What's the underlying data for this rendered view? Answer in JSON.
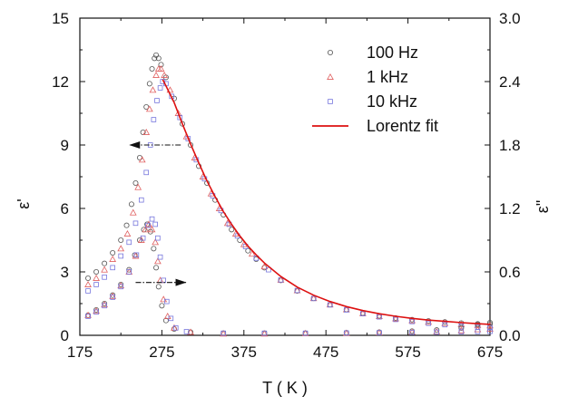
{
  "chart_data": {
    "type": "scatter",
    "xlabel": "T ( K )",
    "ylabel_left": "ε'",
    "ylabel_right": "ε\"",
    "x_range": [
      175,
      675
    ],
    "x_ticks": [
      "175",
      "275",
      "375",
      "475",
      "575",
      "675"
    ],
    "y_left_range": [
      0,
      15
    ],
    "y_left_ticks": [
      "0",
      "3",
      "6",
      "9",
      "12",
      "15"
    ],
    "y_right_range": [
      0,
      3.0
    ],
    "y_right_ticks": [
      "0.0",
      "0.6",
      "1.2",
      "1.8",
      "2.4",
      "3.0"
    ],
    "grid": false,
    "legend_position": "top-right",
    "legend": [
      {
        "label": "100  Hz",
        "marker": "circle",
        "color": "#555555"
      },
      {
        "label": "1    kHz",
        "marker": "triangle",
        "color": "#e06060"
      },
      {
        "label": "10  kHz",
        "marker": "square",
        "color": "#7777dd"
      },
      {
        "label": "Lorentz fit",
        "marker": "line",
        "color": "#dd1111"
      }
    ],
    "annotations": [
      {
        "type": "arrow",
        "direction": "left",
        "axis": "left",
        "from": [
          298,
          9.0
        ],
        "to": [
          235,
          9.0
        ]
      },
      {
        "type": "arrow",
        "direction": "right",
        "axis": "left",
        "from": [
          243,
          2.5
        ],
        "to": [
          305,
          2.5
        ]
      }
    ],
    "series": [
      {
        "name": "100  Hz",
        "axis": "left",
        "marker": "circle",
        "color": "#555555",
        "points": [
          [
            185,
            2.7
          ],
          [
            195,
            3.0
          ],
          [
            205,
            3.4
          ],
          [
            215,
            3.9
          ],
          [
            225,
            4.5
          ],
          [
            232,
            5.2
          ],
          [
            238,
            6.2
          ],
          [
            243,
            7.2
          ],
          [
            248,
            8.4
          ],
          [
            252,
            9.6
          ],
          [
            256,
            10.8
          ],
          [
            260,
            11.9
          ],
          [
            263,
            12.6
          ],
          [
            266,
            13.1
          ],
          [
            268,
            13.25
          ],
          [
            271,
            13.1
          ],
          [
            274,
            12.8
          ],
          [
            280,
            12.2
          ],
          [
            290,
            11.2
          ],
          [
            300,
            10.0
          ],
          [
            310,
            9.0
          ],
          [
            320,
            8.0
          ],
          [
            330,
            7.2
          ],
          [
            340,
            6.4
          ],
          [
            350,
            5.7
          ],
          [
            360,
            5.0
          ],
          [
            370,
            4.5
          ],
          [
            380,
            4.0
          ],
          [
            390,
            3.6
          ],
          [
            400,
            3.2
          ],
          [
            420,
            2.6
          ],
          [
            440,
            2.1
          ],
          [
            460,
            1.75
          ],
          [
            480,
            1.45
          ],
          [
            500,
            1.22
          ],
          [
            520,
            1.05
          ],
          [
            540,
            0.92
          ],
          [
            560,
            0.82
          ],
          [
            580,
            0.74
          ],
          [
            600,
            0.68
          ],
          [
            620,
            0.63
          ],
          [
            640,
            0.58
          ],
          [
            660,
            0.54
          ],
          [
            675,
            0.52
          ]
        ]
      },
      {
        "name": "1    kHz",
        "axis": "left",
        "marker": "triangle",
        "color": "#e06060",
        "points": [
          [
            185,
            2.4
          ],
          [
            195,
            2.7
          ],
          [
            205,
            3.1
          ],
          [
            215,
            3.6
          ],
          [
            225,
            4.1
          ],
          [
            233,
            4.8
          ],
          [
            240,
            5.8
          ],
          [
            246,
            7.0
          ],
          [
            251,
            8.3
          ],
          [
            256,
            9.6
          ],
          [
            260,
            10.7
          ],
          [
            264,
            11.6
          ],
          [
            268,
            12.3
          ],
          [
            271,
            12.6
          ],
          [
            274,
            12.6
          ],
          [
            278,
            12.3
          ],
          [
            285,
            11.6
          ],
          [
            295,
            10.5
          ],
          [
            305,
            9.4
          ],
          [
            315,
            8.4
          ],
          [
            325,
            7.5
          ],
          [
            335,
            6.7
          ],
          [
            345,
            6.0
          ],
          [
            355,
            5.3
          ],
          [
            365,
            4.8
          ],
          [
            375,
            4.3
          ],
          [
            385,
            3.85
          ],
          [
            400,
            3.25
          ],
          [
            420,
            2.62
          ],
          [
            440,
            2.12
          ],
          [
            460,
            1.75
          ],
          [
            480,
            1.45
          ],
          [
            500,
            1.22
          ],
          [
            520,
            1.04
          ],
          [
            540,
            0.9
          ],
          [
            560,
            0.79
          ],
          [
            580,
            0.7
          ],
          [
            600,
            0.63
          ],
          [
            620,
            0.57
          ],
          [
            640,
            0.52
          ],
          [
            660,
            0.48
          ],
          [
            675,
            0.46
          ]
        ]
      },
      {
        "name": "10  kHz",
        "axis": "left",
        "marker": "square",
        "color": "#7777dd",
        "points": [
          [
            185,
            2.1
          ],
          [
            195,
            2.4
          ],
          [
            205,
            2.75
          ],
          [
            215,
            3.2
          ],
          [
            225,
            3.75
          ],
          [
            235,
            4.4
          ],
          [
            243,
            5.3
          ],
          [
            250,
            6.4
          ],
          [
            256,
            7.7
          ],
          [
            261,
            9.0
          ],
          [
            265,
            10.2
          ],
          [
            269,
            11.1
          ],
          [
            273,
            11.7
          ],
          [
            276,
            12.0
          ],
          [
            280,
            11.9
          ],
          [
            287,
            11.3
          ],
          [
            297,
            10.3
          ],
          [
            307,
            9.3
          ],
          [
            317,
            8.3
          ],
          [
            327,
            7.4
          ],
          [
            337,
            6.6
          ],
          [
            347,
            5.9
          ],
          [
            357,
            5.25
          ],
          [
            367,
            4.7
          ],
          [
            377,
            4.2
          ],
          [
            390,
            3.65
          ],
          [
            405,
            3.1
          ],
          [
            420,
            2.62
          ],
          [
            440,
            2.12
          ],
          [
            460,
            1.74
          ],
          [
            480,
            1.44
          ],
          [
            500,
            1.2
          ],
          [
            520,
            1.02
          ],
          [
            540,
            0.87
          ],
          [
            560,
            0.75
          ],
          [
            580,
            0.65
          ],
          [
            600,
            0.57
          ],
          [
            620,
            0.5
          ],
          [
            640,
            0.44
          ],
          [
            660,
            0.39
          ],
          [
            675,
            0.36
          ]
        ]
      },
      {
        "name": "100  Hz",
        "axis": "right",
        "marker": "circle",
        "color": "#555555",
        "points": [
          [
            185,
            0.19
          ],
          [
            195,
            0.24
          ],
          [
            205,
            0.3
          ],
          [
            215,
            0.38
          ],
          [
            225,
            0.48
          ],
          [
            235,
            0.62
          ],
          [
            242,
            0.76
          ],
          [
            248,
            0.9
          ],
          [
            253,
            1.0
          ],
          [
            257,
            1.05
          ],
          [
            261,
            0.98
          ],
          [
            265,
            0.82
          ],
          [
            268,
            0.64
          ],
          [
            271,
            0.46
          ],
          [
            275,
            0.28
          ],
          [
            280,
            0.14
          ],
          [
            290,
            0.06
          ],
          [
            310,
            0.03
          ],
          [
            350,
            0.02
          ],
          [
            400,
            0.02
          ],
          [
            450,
            0.02
          ],
          [
            500,
            0.025
          ],
          [
            540,
            0.03
          ],
          [
            580,
            0.04
          ],
          [
            610,
            0.05
          ],
          [
            640,
            0.07
          ],
          [
            660,
            0.1
          ],
          [
            675,
            0.12
          ]
        ]
      },
      {
        "name": "1    kHz",
        "axis": "right",
        "marker": "triangle",
        "color": "#e06060",
        "points": [
          [
            185,
            0.19
          ],
          [
            195,
            0.23
          ],
          [
            205,
            0.29
          ],
          [
            215,
            0.37
          ],
          [
            225,
            0.47
          ],
          [
            235,
            0.6
          ],
          [
            243,
            0.75
          ],
          [
            250,
            0.9
          ],
          [
            255,
            1.0
          ],
          [
            259,
            1.05
          ],
          [
            263,
            1.0
          ],
          [
            267,
            0.88
          ],
          [
            270,
            0.7
          ],
          [
            273,
            0.52
          ],
          [
            277,
            0.34
          ],
          [
            282,
            0.18
          ],
          [
            290,
            0.07
          ],
          [
            310,
            0.03
          ],
          [
            350,
            0.015
          ],
          [
            400,
            0.015
          ],
          [
            450,
            0.018
          ],
          [
            500,
            0.02
          ],
          [
            540,
            0.025
          ],
          [
            580,
            0.03
          ],
          [
            610,
            0.035
          ],
          [
            640,
            0.045
          ],
          [
            660,
            0.055
          ],
          [
            675,
            0.06
          ]
        ]
      },
      {
        "name": "10  kHz",
        "axis": "right",
        "marker": "square",
        "color": "#7777dd",
        "points": [
          [
            185,
            0.18
          ],
          [
            195,
            0.22
          ],
          [
            205,
            0.28
          ],
          [
            215,
            0.36
          ],
          [
            225,
            0.46
          ],
          [
            235,
            0.6
          ],
          [
            244,
            0.76
          ],
          [
            252,
            0.92
          ],
          [
            258,
            1.04
          ],
          [
            263,
            1.1
          ],
          [
            267,
            1.05
          ],
          [
            270,
            0.92
          ],
          [
            273,
            0.74
          ],
          [
            277,
            0.52
          ],
          [
            281,
            0.32
          ],
          [
            286,
            0.16
          ],
          [
            292,
            0.07
          ],
          [
            305,
            0.035
          ],
          [
            350,
            0.02
          ],
          [
            400,
            0.02
          ],
          [
            450,
            0.02
          ],
          [
            500,
            0.022
          ],
          [
            540,
            0.025
          ],
          [
            580,
            0.028
          ],
          [
            610,
            0.03
          ],
          [
            640,
            0.033
          ],
          [
            660,
            0.035
          ],
          [
            675,
            0.037
          ]
        ]
      },
      {
        "name": "Lorentz fit",
        "axis": "left",
        "type": "line",
        "color": "#dd1111",
        "points": [
          [
            276,
            12.1
          ],
          [
            280,
            11.8
          ],
          [
            290,
            11.0
          ],
          [
            300,
            10.0
          ],
          [
            310,
            9.05
          ],
          [
            320,
            8.15
          ],
          [
            330,
            7.3
          ],
          [
            340,
            6.55
          ],
          [
            350,
            5.85
          ],
          [
            360,
            5.25
          ],
          [
            370,
            4.7
          ],
          [
            380,
            4.22
          ],
          [
            390,
            3.8
          ],
          [
            400,
            3.42
          ],
          [
            420,
            2.78
          ],
          [
            440,
            2.28
          ],
          [
            460,
            1.9
          ],
          [
            480,
            1.6
          ],
          [
            500,
            1.36
          ],
          [
            520,
            1.17
          ],
          [
            540,
            1.02
          ],
          [
            560,
            0.9
          ],
          [
            580,
            0.8
          ],
          [
            600,
            0.72
          ],
          [
            620,
            0.66
          ],
          [
            640,
            0.6
          ],
          [
            660,
            0.55
          ],
          [
            675,
            0.52
          ]
        ]
      }
    ]
  }
}
